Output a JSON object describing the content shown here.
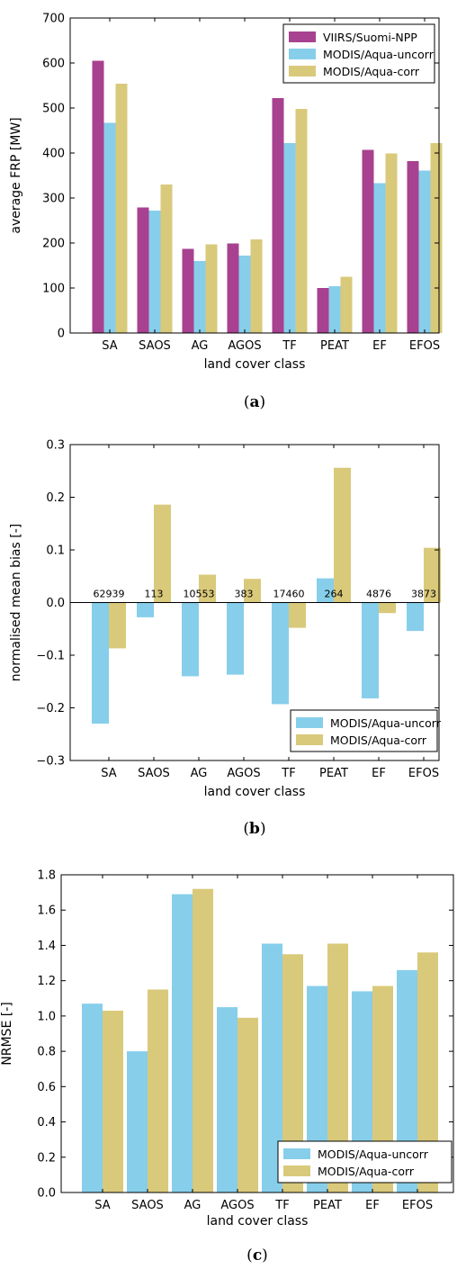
{
  "chart_data": [
    {
      "type": "bar",
      "caption": "(a)",
      "categories": [
        "SA",
        "SAOS",
        "AG",
        "AGOS",
        "TF",
        "PEAT",
        "EF",
        "EFOS"
      ],
      "series": [
        {
          "name": "VIIRS/Suomi-NPP",
          "color": "#a8418f",
          "values": [
            605,
            279,
            187,
            199,
            522,
            100,
            407,
            382
          ]
        },
        {
          "name": "MODIS/Aqua-uncorr",
          "color": "#87ceeb",
          "values": [
            467,
            272,
            160,
            172,
            422,
            104,
            333,
            361
          ]
        },
        {
          "name": "MODIS/Aqua-corr",
          "color": "#d9c97a",
          "values": [
            554,
            330,
            197,
            208,
            498,
            125,
            399,
            422
          ]
        }
      ],
      "xlabel": "land cover class",
      "ylabel": "average FRP [MW]",
      "ylim": [
        0,
        700
      ],
      "yticks": [
        0,
        100,
        200,
        300,
        400,
        500,
        600,
        700
      ],
      "ytick_labels": [
        "0",
        "100",
        "200",
        "300",
        "400",
        "500",
        "600",
        "700"
      ],
      "legend": "top-right",
      "grid": false
    },
    {
      "type": "bar",
      "caption": "(b)",
      "categories": [
        "SA",
        "SAOS",
        "AG",
        "AGOS",
        "TF",
        "PEAT",
        "EF",
        "EFOS"
      ],
      "series": [
        {
          "name": "MODIS/Aqua-uncorr",
          "color": "#87ceeb",
          "values": [
            -0.23,
            -0.028,
            -0.14,
            -0.137,
            -0.193,
            0.046,
            -0.182,
            -0.054
          ]
        },
        {
          "name": "MODIS/Aqua-corr",
          "color": "#d9c97a",
          "values": [
            -0.087,
            0.186,
            0.053,
            0.045,
            -0.048,
            0.256,
            -0.02,
            0.104
          ]
        }
      ],
      "annotations": [
        "62939",
        "113",
        "10553",
        "383",
        "17460",
        "264",
        "4876",
        "3873"
      ],
      "xlabel": "land cover class",
      "ylabel": "normalised mean bias [-]",
      "ylim": [
        -0.3,
        0.3
      ],
      "yticks": [
        -0.3,
        -0.2,
        -0.1,
        0.0,
        0.1,
        0.2,
        0.3
      ],
      "ytick_labels": [
        "−0.3",
        "−0.2",
        "−0.1",
        "0.0",
        "0.1",
        "0.2",
        "0.3"
      ],
      "legend": "bottom-right",
      "grid": false
    },
    {
      "type": "bar",
      "caption": "(c)",
      "categories": [
        "SA",
        "SAOS",
        "AG",
        "AGOS",
        "TF",
        "PEAT",
        "EF",
        "EFOS"
      ],
      "series": [
        {
          "name": "MODIS/Aqua-uncorr",
          "color": "#87ceeb",
          "values": [
            1.07,
            0.8,
            1.69,
            1.05,
            1.41,
            1.17,
            1.14,
            1.26
          ]
        },
        {
          "name": "MODIS/Aqua-corr",
          "color": "#d9c97a",
          "values": [
            1.03,
            1.15,
            1.72,
            0.99,
            1.35,
            1.41,
            1.17,
            1.36
          ]
        }
      ],
      "xlabel": "land cover class",
      "ylabel": "NRMSE [-]",
      "ylim": [
        0,
        1.8
      ],
      "yticks": [
        0,
        0.2,
        0.4,
        0.6,
        0.8,
        1.0,
        1.2,
        1.4,
        1.6,
        1.8
      ],
      "ytick_labels": [
        "0.0",
        "0.2",
        "0.4",
        "0.6",
        "0.8",
        "1.0",
        "1.2",
        "1.4",
        "1.6",
        "1.8"
      ],
      "legend": "bottom-right",
      "grid": false
    }
  ]
}
